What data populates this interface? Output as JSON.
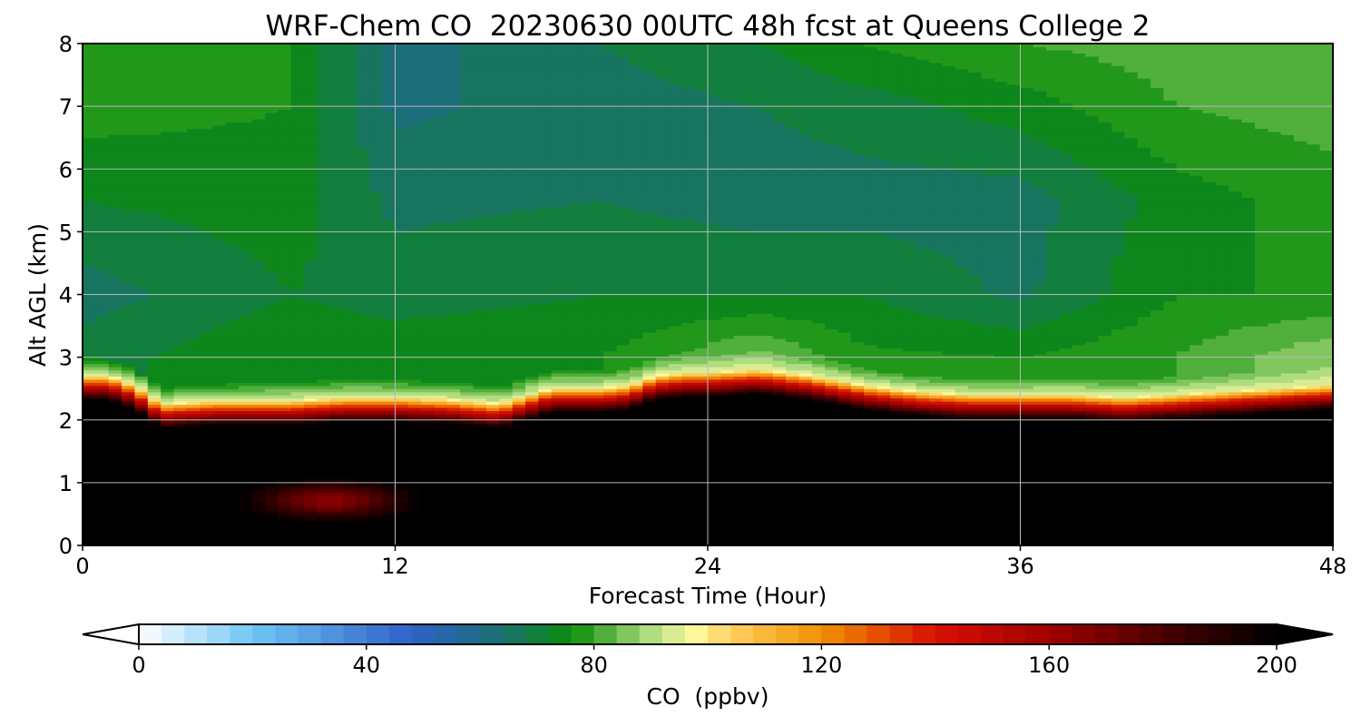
{
  "chart_data": {
    "type": "heatmap",
    "title": "WRF-Chem CO  20230630 00UTC 48h fcst at Queens College 2",
    "xlabel": "Forecast Time (Hour)",
    "ylabel": "Alt AGL (km)",
    "xlim": [
      0,
      48
    ],
    "ylim": [
      0,
      8
    ],
    "x_ticks": [
      0,
      12,
      24,
      36,
      48
    ],
    "y_ticks": [
      0,
      1,
      2,
      3,
      4,
      5,
      6,
      7,
      8
    ],
    "grid": true,
    "colorbar": {
      "label": "CO  (ppbv)",
      "range": [
        0,
        200
      ],
      "ticks": [
        0,
        40,
        80,
        120,
        160,
        200
      ],
      "step": 4,
      "extend": "both",
      "colors": [
        {
          "v": 0,
          "c": "#ffffff"
        },
        {
          "v": 20,
          "c": "#6ec6f5"
        },
        {
          "v": 48,
          "c": "#3060c8"
        },
        {
          "v": 64,
          "c": "#197070"
        },
        {
          "v": 76,
          "c": "#0a8c0a"
        },
        {
          "v": 92,
          "c": "#c8e890"
        },
        {
          "v": 98,
          "c": "#fff59a"
        },
        {
          "v": 104,
          "c": "#ffd060"
        },
        {
          "v": 120,
          "c": "#f09000"
        },
        {
          "v": 140,
          "c": "#d81000"
        },
        {
          "v": 160,
          "c": "#a00000"
        },
        {
          "v": 184,
          "c": "#3a0000"
        },
        {
          "v": 200,
          "c": "#000000"
        }
      ]
    },
    "boundary_layer_top_km": {
      "hours": [
        0,
        1,
        2,
        3,
        5,
        8,
        10,
        12,
        14,
        16,
        18,
        20,
        21,
        22,
        23,
        24,
        26,
        28,
        30,
        32,
        34,
        36,
        38,
        40,
        42,
        44,
        46,
        48
      ],
      "heights": [
        2.5,
        2.5,
        2.35,
        2.05,
        2.1,
        2.1,
        2.15,
        2.15,
        2.12,
        2.05,
        2.3,
        2.3,
        2.35,
        2.5,
        2.55,
        2.55,
        2.6,
        2.5,
        2.35,
        2.25,
        2.2,
        2.2,
        2.2,
        2.15,
        2.2,
        2.25,
        2.3,
        2.35
      ]
    },
    "upper_field": [
      {
        "hour": 0,
        "profile": [
          [
            3,
            70
          ],
          [
            4,
            66
          ],
          [
            5.5,
            72
          ],
          [
            7,
            78
          ],
          [
            8,
            79
          ]
        ]
      },
      {
        "hour": 8,
        "profile": [
          [
            3,
            76
          ],
          [
            4,
            72
          ],
          [
            5.5,
            74
          ],
          [
            7,
            76
          ],
          [
            8,
            76
          ]
        ]
      },
      {
        "hour": 12,
        "profile": [
          [
            3,
            75
          ],
          [
            4,
            70
          ],
          [
            5.5,
            67
          ],
          [
            7,
            63
          ],
          [
            8,
            62
          ]
        ]
      },
      {
        "hour": 20,
        "profile": [
          [
            3,
            76
          ],
          [
            4,
            72
          ],
          [
            5.5,
            68
          ],
          [
            7,
            66
          ],
          [
            8,
            68
          ]
        ]
      },
      {
        "hour": 26,
        "profile": [
          [
            3,
            85
          ],
          [
            4,
            72
          ],
          [
            5.5,
            66
          ],
          [
            7,
            68
          ],
          [
            8,
            72
          ]
        ]
      },
      {
        "hour": 30,
        "profile": [
          [
            3,
            77
          ],
          [
            4,
            72
          ],
          [
            5.5,
            66
          ],
          [
            7,
            70
          ],
          [
            8,
            76
          ]
        ]
      },
      {
        "hour": 36,
        "profile": [
          [
            3,
            76
          ],
          [
            4,
            67
          ],
          [
            5.5,
            66
          ],
          [
            7,
            74
          ],
          [
            8,
            80
          ]
        ]
      },
      {
        "hour": 42,
        "profile": [
          [
            3,
            80
          ],
          [
            4,
            76
          ],
          [
            5.5,
            74
          ],
          [
            7,
            80
          ],
          [
            8,
            82
          ]
        ]
      },
      {
        "hour": 48,
        "profile": [
          [
            3,
            88
          ],
          [
            4,
            76
          ],
          [
            5.5,
            78
          ],
          [
            7,
            82
          ],
          [
            8,
            80
          ]
        ]
      }
    ]
  }
}
